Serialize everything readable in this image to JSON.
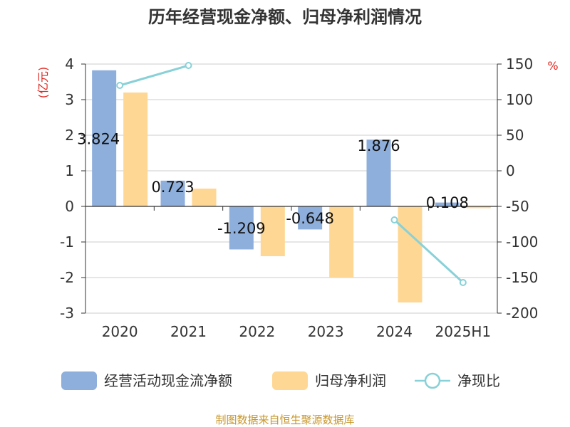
{
  "chart_data": {
    "type": "bar",
    "title": "历年经营现金净额、归母净利润情况",
    "categories": [
      "2020",
      "2021",
      "2022",
      "2023",
      "2024",
      "2025H1"
    ],
    "y_left": {
      "unit": "(亿元)",
      "range": [
        -3,
        4
      ],
      "ticks": [
        4,
        3,
        2,
        1,
        0,
        -1,
        -2,
        -3
      ]
    },
    "y_right": {
      "unit": "%",
      "range": [
        -200,
        150
      ],
      "ticks": [
        150,
        100,
        50,
        0,
        -50,
        -100,
        -150,
        -200
      ]
    },
    "series": [
      {
        "name": "经营活动现金流净额",
        "type": "bar",
        "axis": "left",
        "color": "#8eaedb",
        "values": [
          3.824,
          0.723,
          -1.209,
          -0.648,
          1.876,
          0.108
        ],
        "labels": [
          "3.824",
          "0.723",
          "-1.209",
          "-0.648",
          "1.876",
          "0.108"
        ]
      },
      {
        "name": "归母净利润",
        "type": "bar",
        "axis": "left",
        "color": "#fed794",
        "values": [
          3.2,
          0.5,
          -1.4,
          -2.0,
          -2.7,
          -0.05
        ]
      },
      {
        "name": "净现比",
        "type": "line",
        "axis": "right",
        "color": "#88d1d8",
        "values": [
          120,
          148,
          null,
          null,
          -69,
          -157
        ]
      }
    ],
    "legend_position": "bottom",
    "grid": true
  },
  "footer": {
    "source": "制图数据来自恒生聚源数据库"
  }
}
